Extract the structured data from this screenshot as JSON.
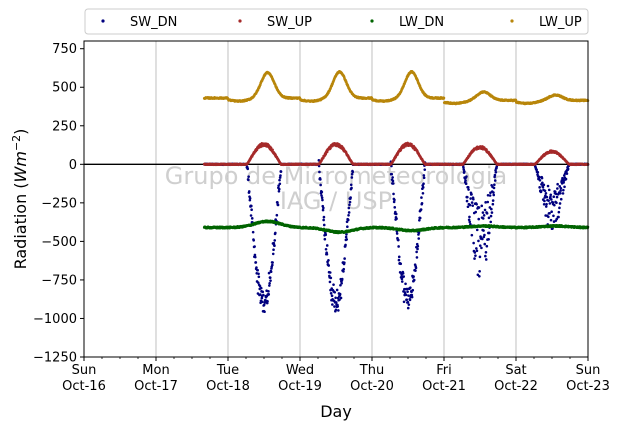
{
  "chart_data": {
    "type": "scatter",
    "xlabel": "Day",
    "ylabel_main": "Radiation (",
    "ylabel_unit": "Wm",
    "ylabel_exp": "−2",
    "ylabel_close": ")",
    "ylim": [
      -1250,
      800
    ],
    "yticks": [
      750,
      500,
      250,
      0,
      -250,
      -500,
      -750,
      -1000,
      -1250
    ],
    "ytick_labels": [
      "750",
      "500",
      "250",
      "0",
      "−250",
      "−500",
      "−750",
      "−1000",
      "−1250"
    ],
    "xlim": [
      0,
      7
    ],
    "xticks": [
      {
        "x": 0,
        "day": "Sun",
        "date": "Oct-16"
      },
      {
        "x": 1,
        "day": "Mon",
        "date": "Oct-17"
      },
      {
        "x": 2,
        "day": "Tue",
        "date": "Oct-18"
      },
      {
        "x": 3,
        "day": "Wed",
        "date": "Oct-19"
      },
      {
        "x": 4,
        "day": "Thu",
        "date": "Oct-20"
      },
      {
        "x": 5,
        "day": "Fri",
        "date": "Oct-21"
      },
      {
        "x": 6,
        "day": "Sat",
        "date": "Oct-22"
      },
      {
        "x": 7,
        "day": "Sun",
        "date": "Oct-23"
      }
    ],
    "grid": "vertical",
    "zero_line": 0,
    "legend_position": "top",
    "watermark_line1": "Grupo de Micrometeorologia",
    "watermark_line2": "IAG / USP",
    "data_start": 1.67,
    "data_end": 7.0,
    "series": [
      {
        "name": "SW_DN",
        "color": "#00007f",
        "kind": "shortwave_down",
        "daily_peaks": [
          {
            "center": 2.5,
            "value": -960
          },
          {
            "center": 3.5,
            "value": -960
          },
          {
            "center": 4.5,
            "value": -930
          },
          {
            "center": 5.5,
            "value": -760
          },
          {
            "center": 6.5,
            "value": -430
          }
        ]
      },
      {
        "name": "SW_UP",
        "color": "#a52a2a",
        "kind": "shortwave_up",
        "daily_peaks": [
          {
            "center": 2.5,
            "value": 140
          },
          {
            "center": 3.5,
            "value": 140
          },
          {
            "center": 4.5,
            "value": 140
          },
          {
            "center": 5.5,
            "value": 120
          },
          {
            "center": 6.5,
            "value": 90
          }
        ]
      },
      {
        "name": "LW_DN",
        "color": "#006400",
        "kind": "longwave_down",
        "night_level": -410,
        "daily_bumps": [
          {
            "center": 2.5,
            "value": -370
          },
          {
            "center": 3.5,
            "value": -440
          },
          {
            "center": 4.5,
            "value": -430
          },
          {
            "center": 5.5,
            "value": -400
          },
          {
            "center": 6.5,
            "value": -400
          }
        ]
      },
      {
        "name": "LW_UP",
        "color": "#b8860b",
        "kind": "longwave_up",
        "night_level": 430,
        "daily_peaks": [
          {
            "center": 2.5,
            "value": 595
          },
          {
            "center": 3.5,
            "value": 600
          },
          {
            "center": 4.5,
            "value": 600
          },
          {
            "center": 5.5,
            "value": 470
          },
          {
            "center": 6.5,
            "value": 450
          }
        ]
      }
    ]
  }
}
